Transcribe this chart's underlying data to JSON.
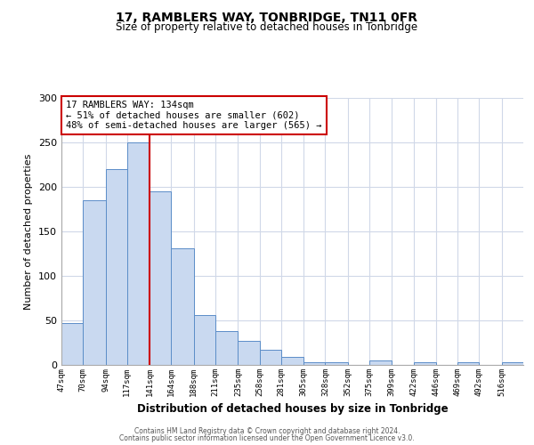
{
  "title": "17, RAMBLERS WAY, TONBRIDGE, TN11 0FR",
  "subtitle": "Size of property relative to detached houses in Tonbridge",
  "xlabel": "Distribution of detached houses by size in Tonbridge",
  "ylabel": "Number of detached properties",
  "bin_labels": [
    "47sqm",
    "70sqm",
    "94sqm",
    "117sqm",
    "141sqm",
    "164sqm",
    "188sqm",
    "211sqm",
    "235sqm",
    "258sqm",
    "281sqm",
    "305sqm",
    "328sqm",
    "352sqm",
    "375sqm",
    "399sqm",
    "422sqm",
    "446sqm",
    "469sqm",
    "492sqm",
    "516sqm"
  ],
  "bin_edges": [
    47,
    70,
    94,
    117,
    141,
    164,
    188,
    211,
    235,
    258,
    281,
    305,
    328,
    352,
    375,
    399,
    422,
    446,
    469,
    492,
    516,
    539
  ],
  "bar_heights": [
    47,
    185,
    220,
    250,
    195,
    131,
    56,
    38,
    27,
    17,
    9,
    3,
    3,
    0,
    5,
    0,
    3,
    0,
    3,
    0,
    3
  ],
  "bar_color": "#c9d9f0",
  "bar_edge_color": "#5b8dc8",
  "vline_x": 141,
  "vline_color": "#cc0000",
  "annotation_title": "17 RAMBLERS WAY: 134sqm",
  "annotation_line1": "← 51% of detached houses are smaller (602)",
  "annotation_line2": "48% of semi-detached houses are larger (565) →",
  "annotation_box_color": "#cc0000",
  "ylim": [
    0,
    300
  ],
  "yticks": [
    0,
    50,
    100,
    150,
    200,
    250,
    300
  ],
  "footer_line1": "Contains HM Land Registry data © Crown copyright and database right 2024.",
  "footer_line2": "Contains public sector information licensed under the Open Government Licence v3.0.",
  "background_color": "#ffffff",
  "grid_color": "#d0d8e8"
}
